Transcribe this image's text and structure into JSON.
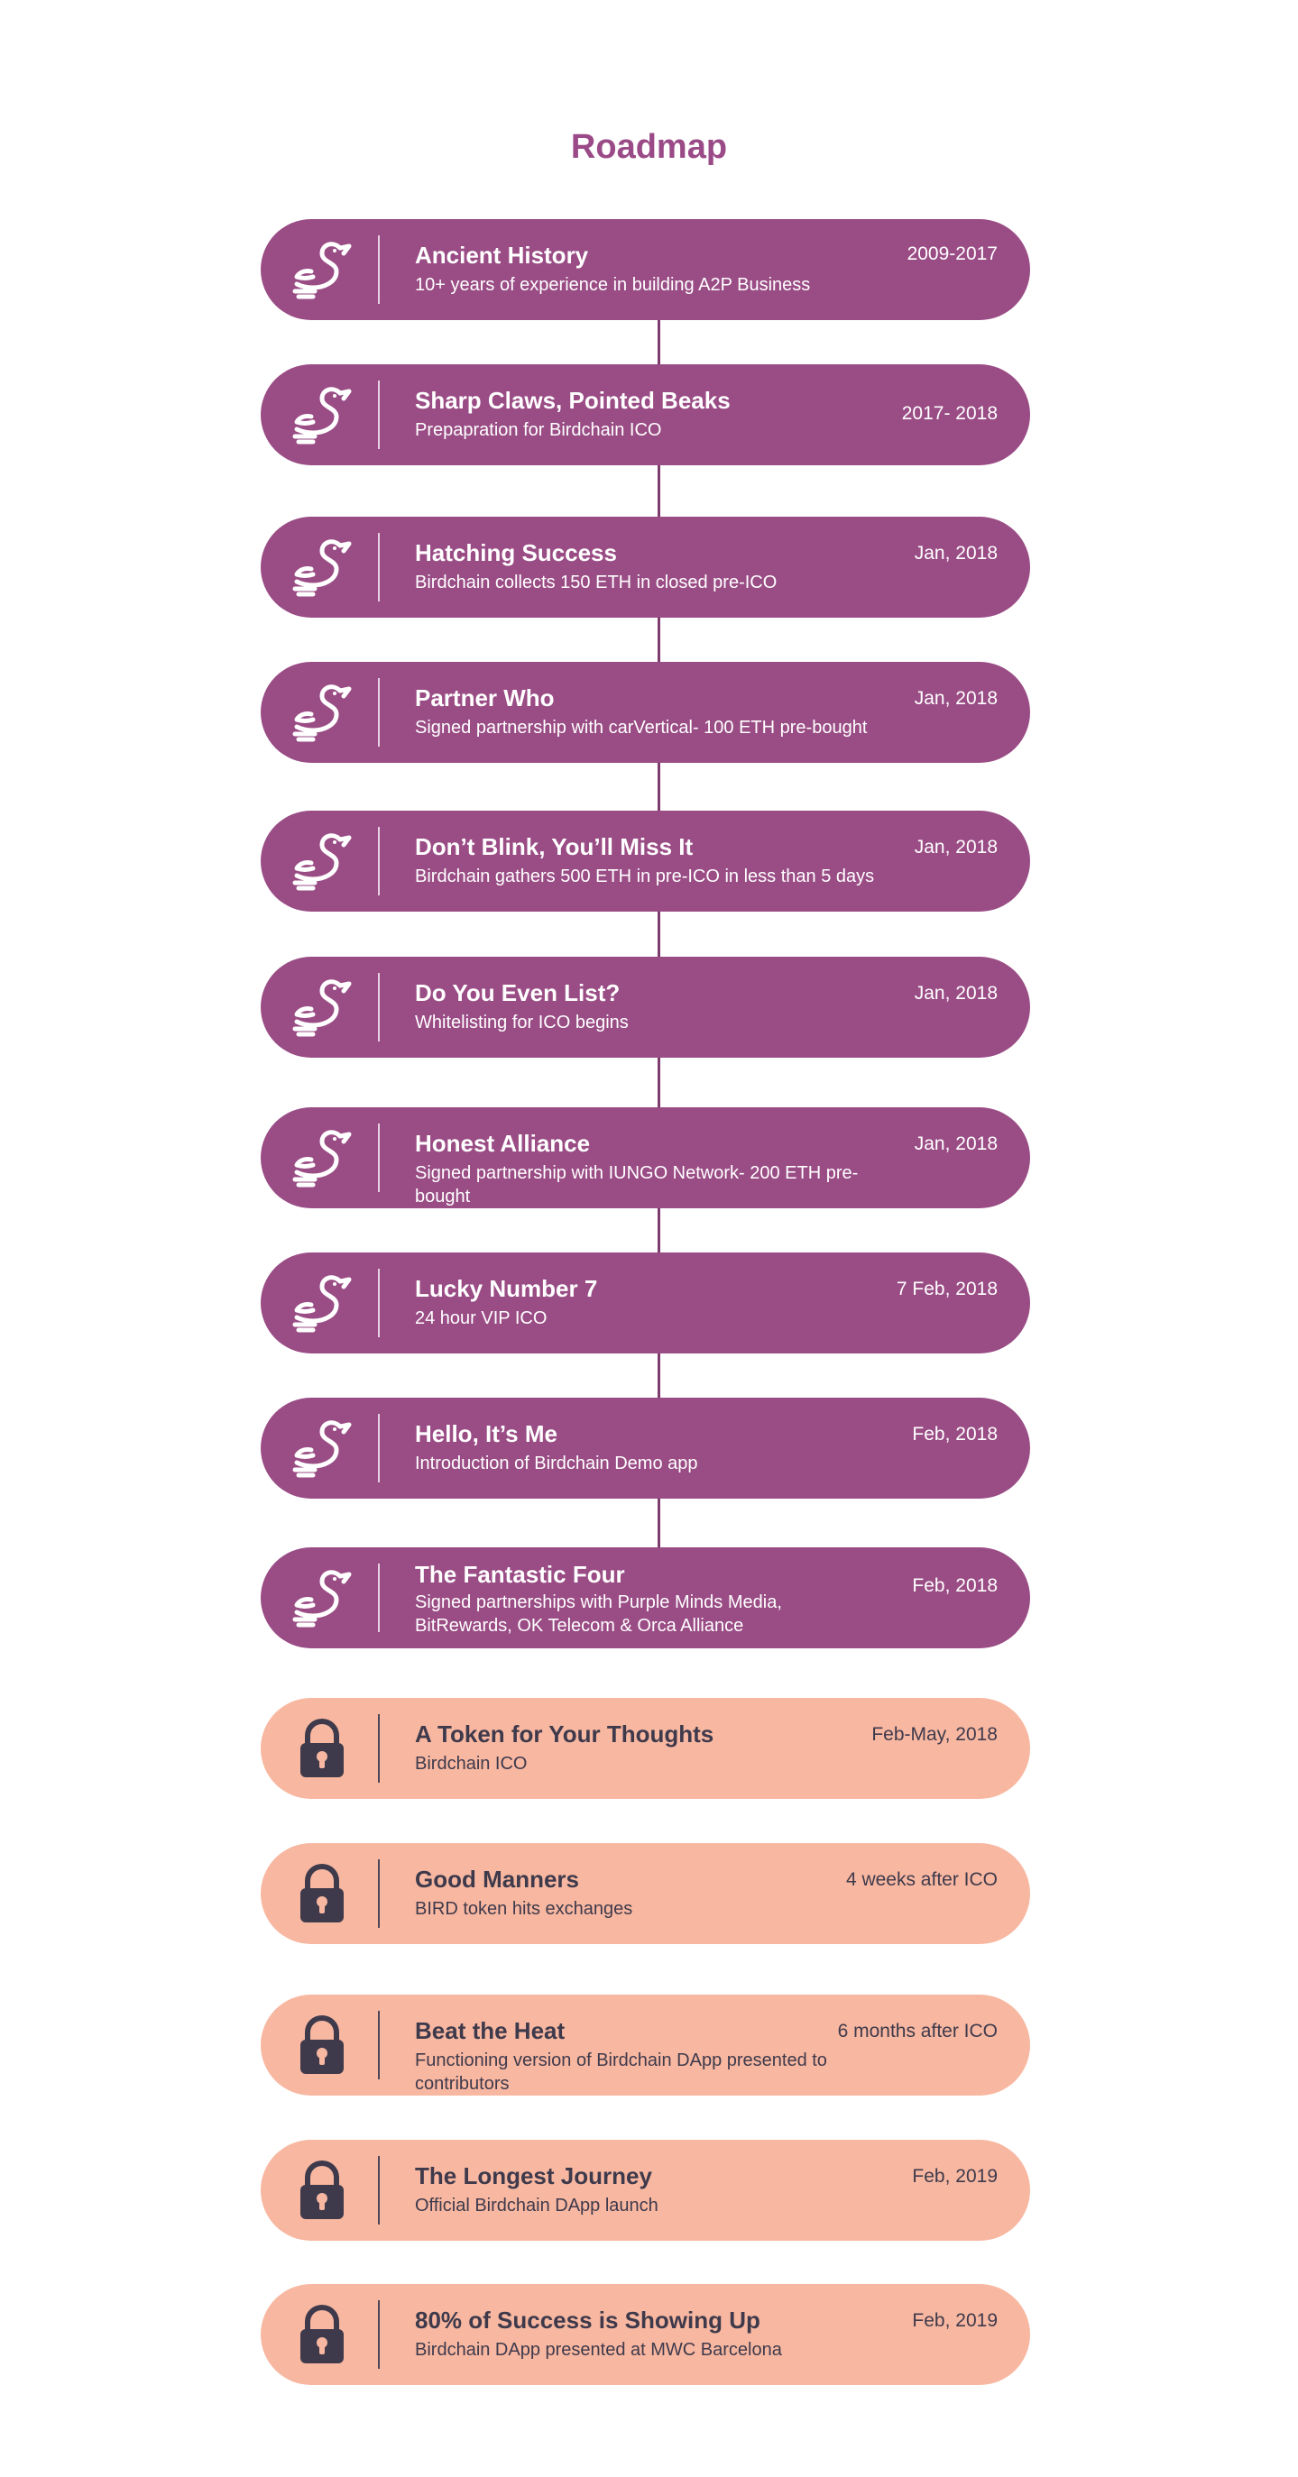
{
  "page": {
    "title": "Roadmap"
  },
  "colors": {
    "completed": "#9a4c85",
    "upcoming": "#f8b7a0",
    "title": "#9a4a86"
  },
  "milestones": [
    {
      "title": "Ancient History",
      "description": "10+ years of experience in building A2P Business",
      "date": "2009-2017",
      "status": "completed",
      "icon": "bird-icon"
    },
    {
      "title": "Sharp Claws, Pointed Beaks",
      "description": "Prepapration for Birdchain ICO",
      "date": "2017- 2018",
      "status": "completed",
      "icon": "bird-icon"
    },
    {
      "title": "Hatching Success",
      "description": "Birdchain collects 150 ETH in closed pre-ICO",
      "date": "Jan, 2018",
      "status": "completed",
      "icon": "bird-icon"
    },
    {
      "title": "Partner Who",
      "description": "Signed partnership with carVertical- 100 ETH pre-bought",
      "date": "Jan, 2018",
      "status": "completed",
      "icon": "bird-icon"
    },
    {
      "title": "Don’t Blink, You’ll Miss It",
      "description": "Birdchain gathers 500 ETH in pre-ICO in less than 5 days",
      "date": "Jan, 2018",
      "status": "completed",
      "icon": "bird-icon"
    },
    {
      "title": "Do You Even List?",
      "description": "Whitelisting for ICO begins",
      "date": "Jan, 2018",
      "status": "completed",
      "icon": "bird-icon"
    },
    {
      "title": "Honest Alliance",
      "description": "Signed partnership with IUNGO Network- 200 ETH pre-bought",
      "date": "Jan, 2018",
      "status": "completed",
      "icon": "bird-icon"
    },
    {
      "title": "Lucky Number 7",
      "description": "24 hour VIP ICO",
      "date": "7 Feb, 2018",
      "status": "completed",
      "icon": "bird-icon"
    },
    {
      "title": "Hello, It’s Me",
      "description": "Introduction of Birdchain Demo app",
      "date": "Feb, 2018",
      "status": "completed",
      "icon": "bird-icon"
    },
    {
      "title": "The Fantastic Four",
      "description": "Signed partnerships with Purple Minds Media, BitRewards, OK Telecom & Orca Alliance",
      "date": "Feb, 2018",
      "status": "completed",
      "icon": "bird-icon"
    },
    {
      "title": "A Token for Your Thoughts",
      "description": "Birdchain ICO",
      "date": "Feb-May, 2018",
      "status": "upcoming",
      "icon": "lock-icon"
    },
    {
      "title": "Good Manners",
      "description": "BIRD token hits exchanges",
      "date": "4 weeks after ICO",
      "status": "upcoming",
      "icon": "lock-icon"
    },
    {
      "title": "Beat the Heat",
      "description": "Functioning version of Birdchain DApp presented to contributors",
      "date": "6 months after ICO",
      "status": "upcoming",
      "icon": "lock-icon"
    },
    {
      "title": "The Longest Journey",
      "description": "Official Birdchain DApp launch",
      "date": "Feb, 2019",
      "status": "upcoming",
      "icon": "lock-icon"
    },
    {
      "title": "80% of Success is Showing Up",
      "description": "Birdchain DApp presented at MWC Barcelona",
      "date": "Feb, 2019",
      "status": "upcoming",
      "icon": "lock-icon"
    }
  ]
}
